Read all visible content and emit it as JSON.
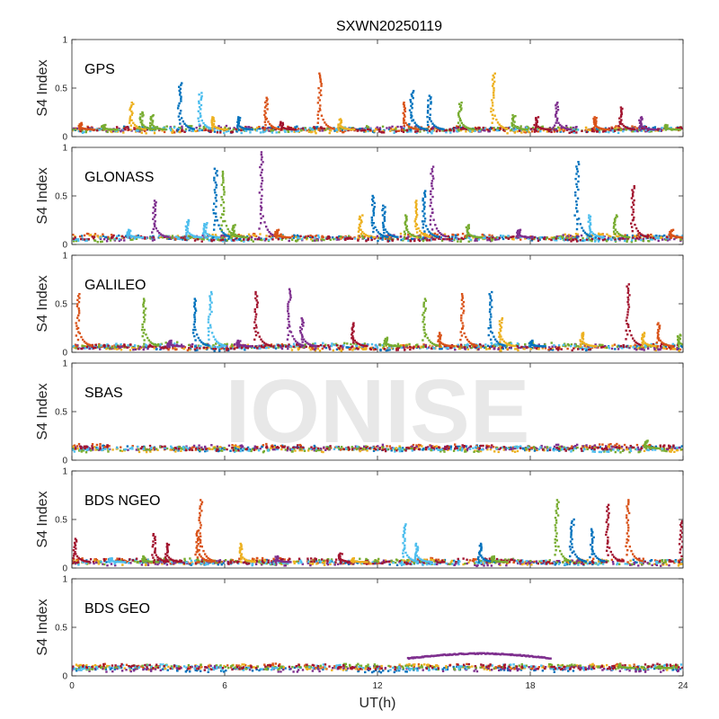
{
  "chart_data": {
    "type": "scatter",
    "title": "SXWN20250119",
    "xlabel": "UT(h)",
    "ylabel": "S4 Index",
    "xlim": [
      0,
      24
    ],
    "ylim": [
      0,
      1
    ],
    "xticks": [
      "0",
      "6",
      "12",
      "18",
      "24"
    ],
    "yticks": [
      "0",
      "0.5",
      "1"
    ],
    "watermark": "IONISE",
    "series_colors": [
      "#0072BD",
      "#D95319",
      "#EDB120",
      "#7E2F8E",
      "#77AC30",
      "#4DBEEE",
      "#A2142F"
    ],
    "panels": [
      {
        "label": "GPS",
        "baseline": 0.07,
        "spikes": [
          {
            "x": 0.3,
            "y": 0.14,
            "c": 1
          },
          {
            "x": 1.2,
            "y": 0.12,
            "c": 4
          },
          {
            "x": 2.3,
            "y": 0.35,
            "c": 2
          },
          {
            "x": 2.7,
            "y": 0.25,
            "c": 4
          },
          {
            "x": 3.1,
            "y": 0.22,
            "c": 4
          },
          {
            "x": 4.2,
            "y": 0.55,
            "c": 0
          },
          {
            "x": 5.0,
            "y": 0.45,
            "c": 5
          },
          {
            "x": 5.5,
            "y": 0.2,
            "c": 2
          },
          {
            "x": 6.5,
            "y": 0.2,
            "c": 0
          },
          {
            "x": 7.6,
            "y": 0.4,
            "c": 1
          },
          {
            "x": 8.2,
            "y": 0.15,
            "c": 6
          },
          {
            "x": 9.7,
            "y": 0.65,
            "c": 1
          },
          {
            "x": 10.5,
            "y": 0.18,
            "c": 2
          },
          {
            "x": 13.0,
            "y": 0.35,
            "c": 1
          },
          {
            "x": 13.3,
            "y": 0.47,
            "c": 0
          },
          {
            "x": 14.0,
            "y": 0.42,
            "c": 0
          },
          {
            "x": 15.2,
            "y": 0.35,
            "c": 4
          },
          {
            "x": 16.5,
            "y": 0.65,
            "c": 2
          },
          {
            "x": 17.3,
            "y": 0.22,
            "c": 4
          },
          {
            "x": 18.2,
            "y": 0.2,
            "c": 6
          },
          {
            "x": 19.0,
            "y": 0.35,
            "c": 3
          },
          {
            "x": 20.5,
            "y": 0.2,
            "c": 1
          },
          {
            "x": 21.5,
            "y": 0.3,
            "c": 6
          },
          {
            "x": 22.3,
            "y": 0.2,
            "c": 3
          },
          {
            "x": 23.3,
            "y": 0.12,
            "c": 4
          }
        ]
      },
      {
        "label": "GLONASS",
        "baseline": 0.07,
        "spikes": [
          {
            "x": 2.2,
            "y": 0.15,
            "c": 5
          },
          {
            "x": 3.2,
            "y": 0.45,
            "c": 3
          },
          {
            "x": 4.5,
            "y": 0.25,
            "c": 5
          },
          {
            "x": 5.2,
            "y": 0.22,
            "c": 5
          },
          {
            "x": 5.6,
            "y": 0.78,
            "c": 0
          },
          {
            "x": 5.9,
            "y": 0.75,
            "c": 4
          },
          {
            "x": 6.3,
            "y": 0.2,
            "c": 4
          },
          {
            "x": 7.4,
            "y": 0.95,
            "c": 3
          },
          {
            "x": 8.0,
            "y": 0.15,
            "c": 1
          },
          {
            "x": 11.3,
            "y": 0.3,
            "c": 2
          },
          {
            "x": 11.8,
            "y": 0.5,
            "c": 0
          },
          {
            "x": 12.2,
            "y": 0.4,
            "c": 0
          },
          {
            "x": 13.1,
            "y": 0.3,
            "c": 4
          },
          {
            "x": 13.5,
            "y": 0.45,
            "c": 2
          },
          {
            "x": 13.8,
            "y": 0.55,
            "c": 0
          },
          {
            "x": 14.1,
            "y": 0.8,
            "c": 3
          },
          {
            "x": 15.5,
            "y": 0.2,
            "c": 4
          },
          {
            "x": 17.5,
            "y": 0.15,
            "c": 3
          },
          {
            "x": 19.8,
            "y": 0.85,
            "c": 0
          },
          {
            "x": 20.3,
            "y": 0.3,
            "c": 5
          },
          {
            "x": 21.3,
            "y": 0.3,
            "c": 4
          },
          {
            "x": 22.0,
            "y": 0.6,
            "c": 6
          },
          {
            "x": 23.5,
            "y": 0.15,
            "c": 1
          }
        ]
      },
      {
        "label": "GALILEO",
        "baseline": 0.06,
        "spikes": [
          {
            "x": 0.2,
            "y": 0.6,
            "c": 1
          },
          {
            "x": 2.8,
            "y": 0.55,
            "c": 4
          },
          {
            "x": 3.8,
            "y": 0.12,
            "c": 3
          },
          {
            "x": 4.8,
            "y": 0.55,
            "c": 0
          },
          {
            "x": 5.4,
            "y": 0.62,
            "c": 5
          },
          {
            "x": 6.5,
            "y": 0.12,
            "c": 3
          },
          {
            "x": 7.2,
            "y": 0.62,
            "c": 6
          },
          {
            "x": 8.5,
            "y": 0.65,
            "c": 3
          },
          {
            "x": 9.0,
            "y": 0.35,
            "c": 3
          },
          {
            "x": 11.0,
            "y": 0.3,
            "c": 6
          },
          {
            "x": 12.3,
            "y": 0.15,
            "c": 4
          },
          {
            "x": 13.8,
            "y": 0.55,
            "c": 4
          },
          {
            "x": 14.4,
            "y": 0.2,
            "c": 1
          },
          {
            "x": 15.3,
            "y": 0.6,
            "c": 1
          },
          {
            "x": 16.4,
            "y": 0.62,
            "c": 0
          },
          {
            "x": 16.8,
            "y": 0.35,
            "c": 2
          },
          {
            "x": 18.0,
            "y": 0.12,
            "c": 0
          },
          {
            "x": 20.0,
            "y": 0.2,
            "c": 2
          },
          {
            "x": 21.8,
            "y": 0.7,
            "c": 6
          },
          {
            "x": 22.4,
            "y": 0.2,
            "c": 2
          },
          {
            "x": 23.0,
            "y": 0.3,
            "c": 1
          },
          {
            "x": 23.8,
            "y": 0.18,
            "c": 4
          }
        ]
      },
      {
        "label": "SBAS",
        "baseline": 0.12,
        "spikes": [
          {
            "x": 22.5,
            "y": 0.2,
            "c": 4
          }
        ]
      },
      {
        "label": "BDS NGEO",
        "baseline": 0.06,
        "spikes": [
          {
            "x": 0.1,
            "y": 0.3,
            "c": 6
          },
          {
            "x": 1.5,
            "y": 0.1,
            "c": 5
          },
          {
            "x": 2.8,
            "y": 0.12,
            "c": 4
          },
          {
            "x": 3.2,
            "y": 0.35,
            "c": 6
          },
          {
            "x": 3.7,
            "y": 0.25,
            "c": 6
          },
          {
            "x": 4.9,
            "y": 0.38,
            "c": 1
          },
          {
            "x": 5.0,
            "y": 0.7,
            "c": 1
          },
          {
            "x": 6.6,
            "y": 0.25,
            "c": 2
          },
          {
            "x": 8.0,
            "y": 0.12,
            "c": 3
          },
          {
            "x": 10.5,
            "y": 0.15,
            "c": 6
          },
          {
            "x": 11.0,
            "y": 0.1,
            "c": 2
          },
          {
            "x": 13.0,
            "y": 0.45,
            "c": 5
          },
          {
            "x": 13.5,
            "y": 0.25,
            "c": 5
          },
          {
            "x": 16.0,
            "y": 0.25,
            "c": 0
          },
          {
            "x": 16.5,
            "y": 0.12,
            "c": 4
          },
          {
            "x": 19.0,
            "y": 0.7,
            "c": 4
          },
          {
            "x": 19.6,
            "y": 0.5,
            "c": 0
          },
          {
            "x": 20.4,
            "y": 0.4,
            "c": 0
          },
          {
            "x": 21.0,
            "y": 0.65,
            "c": 6
          },
          {
            "x": 21.8,
            "y": 0.7,
            "c": 1
          },
          {
            "x": 23.9,
            "y": 0.5,
            "c": 6
          }
        ]
      },
      {
        "label": "BDS GEO",
        "baseline": 0.08,
        "arc": {
          "x_start": 13.2,
          "x_end": 18.8,
          "y_start": 0.18,
          "y_peak": 0.23,
          "y_end": 0.18,
          "c": 3
        },
        "spikes": [
          {
            "x": 21.5,
            "y": 0.12,
            "c": 4
          },
          {
            "x": 23.0,
            "y": 0.1,
            "c": 4
          }
        ]
      }
    ]
  }
}
